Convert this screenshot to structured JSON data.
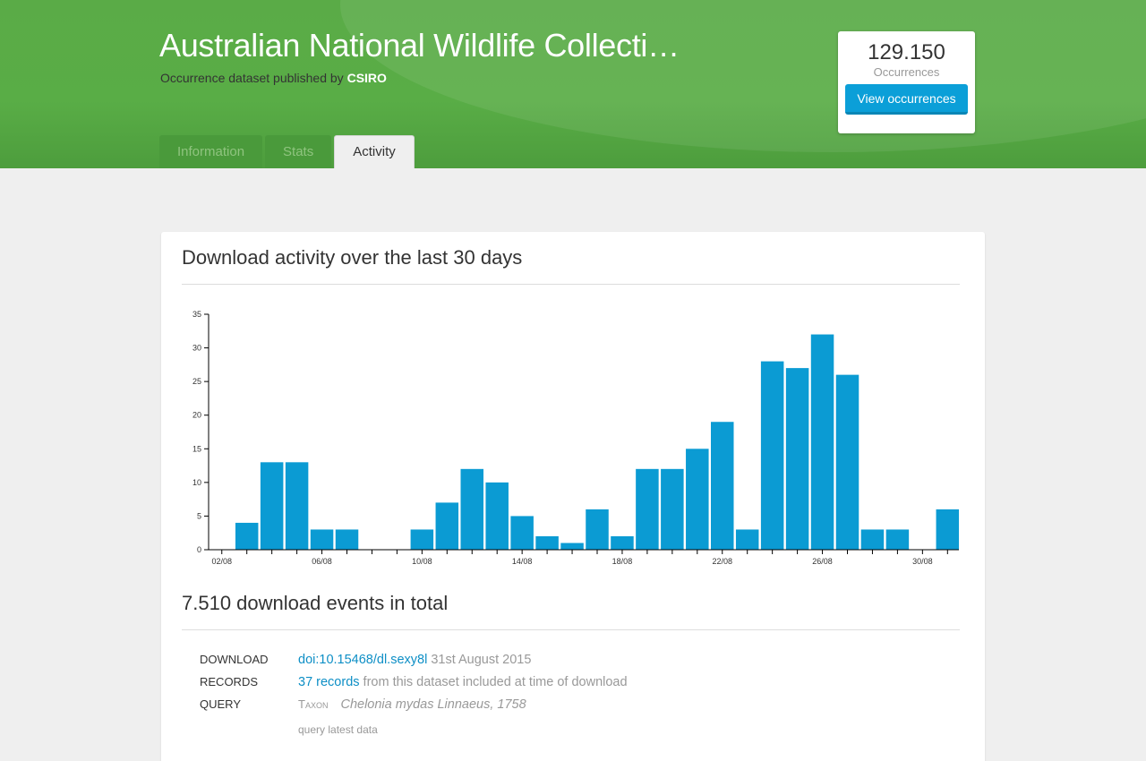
{
  "header": {
    "title": "Australian National Wildlife Collecti…",
    "subtitle_prefix": "Occurrence dataset published by",
    "publisher": "CSIRO"
  },
  "occurrences": {
    "count": "129.150",
    "label": "Occurrences",
    "button_label": "View occurrences"
  },
  "tabs": [
    {
      "label": "Information",
      "active": false
    },
    {
      "label": "Stats",
      "active": false
    },
    {
      "label": "Activity",
      "active": true
    }
  ],
  "activity": {
    "heading": "Download activity over the last 30 days",
    "total_heading": "7.510 download events in total"
  },
  "chart_data": {
    "type": "bar",
    "title": "Download activity over the last 30 days",
    "xlabel": "",
    "ylabel": "",
    "ylim": [
      0,
      35
    ],
    "yticks": [
      "0",
      "5",
      "10",
      "15",
      "20",
      "25",
      "30",
      "35"
    ],
    "categories": [
      "02/08",
      "03/08",
      "04/08",
      "05/08",
      "06/08",
      "07/08",
      "08/08",
      "09/08",
      "10/08",
      "11/08",
      "12/08",
      "13/08",
      "14/08",
      "15/08",
      "16/08",
      "17/08",
      "18/08",
      "19/08",
      "20/08",
      "21/08",
      "22/08",
      "23/08",
      "24/08",
      "25/08",
      "26/08",
      "27/08",
      "28/08",
      "29/08",
      "30/08",
      "31/08"
    ],
    "x_tick_labels": [
      "02/08",
      "06/08",
      "10/08",
      "14/08",
      "18/08",
      "22/08",
      "26/08",
      "30/08"
    ],
    "values": [
      0,
      4,
      13,
      13,
      3,
      3,
      0,
      0,
      3,
      7,
      12,
      10,
      5,
      2,
      1,
      6,
      2,
      12,
      12,
      15,
      19,
      3,
      28,
      27,
      32,
      26,
      3,
      3,
      0,
      6
    ],
    "bar_color": "#0b9bd3"
  },
  "download": {
    "download_label": "Download",
    "doi": "doi:10.15468/dl.sexy8l",
    "date": "31st August 2015",
    "records_label": "Records",
    "records_link": "37 records",
    "records_text": "from this dataset included at time of download",
    "query_label": "Query",
    "taxon_label": "Taxon",
    "taxon_value": "Chelonia mydas Linnaeus, 1758",
    "query_link": "query",
    "query_suffix": "latest data"
  }
}
